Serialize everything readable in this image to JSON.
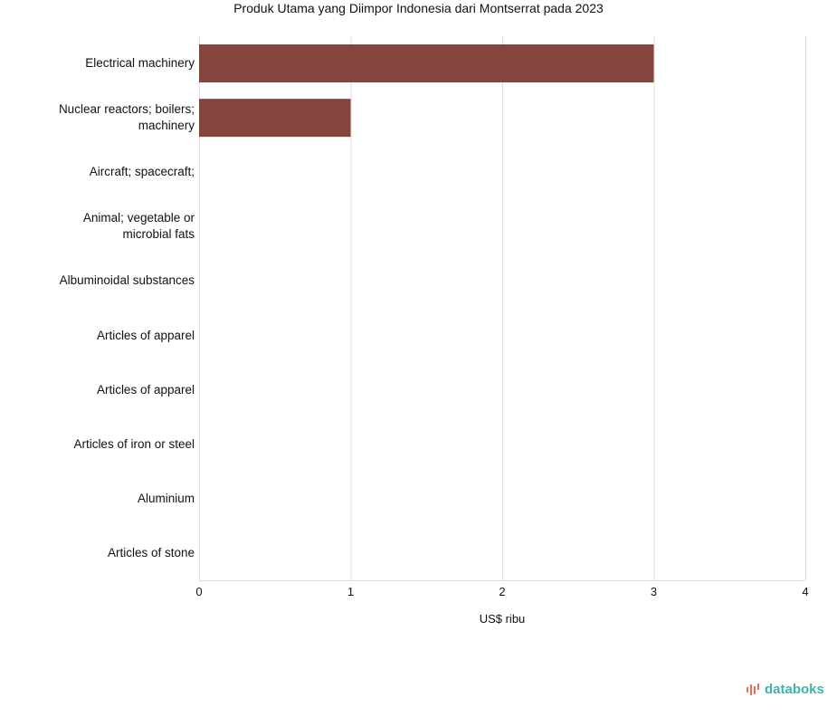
{
  "chart_data": {
    "type": "bar",
    "orientation": "horizontal",
    "title": "Produk Utama yang Diimpor Indonesia dari Montserrat pada 2023",
    "categories": [
      "Electrical machinery",
      "Nuclear reactors; boilers; machinery",
      "Aircraft; spacecraft;",
      "Animal; vegetable or microbial fats",
      "Albuminoidal substances",
      "Articles of apparel",
      "Articles of apparel",
      "Articles of iron or steel",
      "Aluminium",
      "Articles of stone"
    ],
    "values": [
      3,
      1,
      0,
      0,
      0,
      0,
      0,
      0,
      0,
      0
    ],
    "xlabel": "US$ ribu",
    "ylabel": "",
    "xlim": [
      0,
      4
    ],
    "xticks": [
      "0",
      "1",
      "2",
      "3",
      "4"
    ],
    "grid": true,
    "bar_color": "#84463c"
  },
  "branding": {
    "logo_text": "databoks",
    "logo_color": "#3fb3a8",
    "logo_icon_color": "#ef6b5b"
  }
}
